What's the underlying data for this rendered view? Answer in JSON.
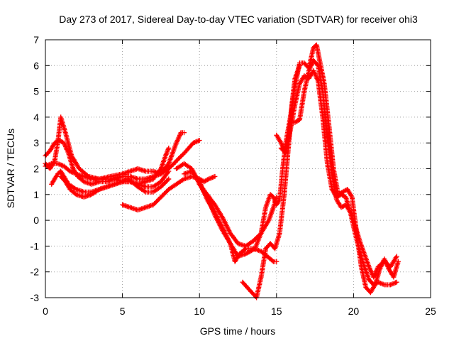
{
  "chart_data": {
    "type": "scatter",
    "title": "Day 273 of 2017, Sidereal Day-to-day VTEC variation (SDTVAR) for receiver ohi3",
    "xlabel": "GPS time / hours",
    "ylabel": "SDTVAR / TECUs",
    "xlim": [
      0,
      25
    ],
    "ylim": [
      -3,
      7
    ],
    "xticks": [
      0,
      5,
      10,
      15,
      20,
      25
    ],
    "yticks": [
      -3,
      -2,
      -1,
      0,
      1,
      2,
      3,
      4,
      5,
      6,
      7
    ],
    "grid": true,
    "marker": "+",
    "color": "#ff0000",
    "series": [
      {
        "x": [
          0.0,
          0.3,
          0.6,
          0.9,
          1.2,
          1.5,
          1.8,
          2.1,
          2.5,
          3.0,
          3.5,
          4.0,
          4.5,
          5.0,
          5.5,
          6.0,
          6.5,
          7.0,
          7.5,
          8.0,
          8.5,
          9.0,
          9.3,
          9.6,
          10.0
        ],
        "y": [
          2.5,
          2.7,
          3.0,
          3.1,
          3.0,
          2.6,
          2.0,
          1.7,
          1.5,
          1.4,
          1.5,
          1.5,
          1.6,
          1.7,
          1.7,
          1.6,
          1.6,
          1.7,
          1.8,
          2.0,
          2.3,
          2.6,
          2.8,
          3.0,
          3.1
        ]
      },
      {
        "x": [
          0.0,
          0.3,
          0.6,
          0.8,
          1.0,
          1.3,
          1.7,
          2.2,
          2.8,
          3.5,
          4.2,
          5.0,
          5.5,
          6.0,
          6.5,
          7.0,
          7.5,
          8.0,
          8.5,
          8.8,
          9.0
        ],
        "y": [
          2.2,
          2.0,
          2.3,
          3.0,
          4.0,
          3.4,
          2.5,
          2.0,
          1.7,
          1.6,
          1.7,
          1.8,
          1.9,
          2.0,
          1.9,
          1.9,
          1.8,
          2.2,
          3.0,
          3.4,
          3.4
        ]
      },
      {
        "x": [
          0.0,
          0.4,
          0.8,
          1.2,
          1.6,
          2.0,
          2.5,
          3.0,
          3.5,
          4.0,
          4.5,
          5.0,
          5.5,
          6.0,
          6.5,
          7.0,
          7.5,
          7.8,
          8.0
        ],
        "y": [
          2.1,
          2.2,
          2.2,
          2.1,
          1.9,
          1.8,
          1.7,
          1.6,
          1.6,
          1.6,
          1.6,
          1.5,
          1.5,
          1.4,
          1.5,
          1.6,
          2.0,
          2.5,
          2.8
        ]
      },
      {
        "x": [
          0.4,
          0.6,
          0.8,
          1.0,
          1.2,
          1.5,
          2.0,
          2.5,
          3.0,
          3.5,
          4.0,
          4.5,
          5.0,
          5.5,
          6.0,
          6.5,
          7.0,
          7.5,
          8.0
        ],
        "y": [
          1.4,
          1.6,
          1.8,
          1.9,
          1.7,
          1.4,
          1.2,
          1.1,
          1.1,
          1.2,
          1.3,
          1.4,
          1.5,
          1.5,
          1.4,
          1.3,
          1.3,
          1.5,
          1.9
        ]
      },
      {
        "x": [
          1.0,
          1.3,
          1.6,
          2.0,
          2.5,
          3.0,
          3.5,
          4.0,
          4.5,
          5.0,
          5.3,
          5.6,
          6.0,
          6.5,
          7.0,
          7.5,
          8.0
        ],
        "y": [
          1.7,
          1.5,
          1.2,
          1.0,
          0.9,
          1.0,
          1.2,
          1.3,
          1.4,
          1.5,
          1.6,
          1.5,
          1.3,
          1.1,
          1.1,
          1.3,
          1.6
        ]
      },
      {
        "x": [
          5.0,
          5.5,
          6.0,
          6.5,
          7.0,
          7.5,
          8.0,
          8.5,
          9.0,
          9.5,
          10.0,
          10.3,
          10.6,
          11.0
        ],
        "y": [
          0.6,
          0.5,
          0.4,
          0.5,
          0.6,
          0.9,
          1.2,
          1.4,
          1.6,
          1.7,
          1.6,
          1.5,
          1.6,
          1.7
        ]
      },
      {
        "x": [
          8.5,
          9.0,
          9.5,
          10.0,
          10.5,
          11.0,
          11.5,
          12.0,
          12.5,
          13.0,
          13.5,
          14.0,
          14.5,
          14.8,
          15.0
        ],
        "y": [
          2.0,
          2.2,
          2.0,
          1.4,
          1.0,
          0.6,
          0.1,
          -0.5,
          -0.9,
          -1.0,
          -0.8,
          -0.5,
          0.0,
          0.5,
          0.9
        ]
      },
      {
        "x": [
          9.0,
          9.5,
          10.0,
          10.5,
          11.0,
          11.5,
          12.0,
          12.5,
          13.0,
          13.3,
          13.6,
          14.0,
          14.3,
          14.6,
          14.8,
          15.0,
          15.2,
          15.4,
          15.6
        ],
        "y": [
          1.8,
          1.9,
          1.5,
          0.8,
          0.3,
          -0.3,
          -0.9,
          -1.4,
          -1.3,
          -1.2,
          -1.1,
          -0.5,
          0.5,
          1.0,
          0.9,
          0.6,
          0.8,
          2.0,
          3.0
        ]
      },
      {
        "x": [
          10.0,
          10.5,
          11.0,
          11.5,
          12.0,
          12.3,
          12.6,
          13.0,
          13.5,
          14.0,
          14.4,
          14.8,
          15.0
        ],
        "y": [
          1.4,
          0.9,
          0.2,
          -0.4,
          -0.9,
          -1.6,
          -1.3,
          -1.1,
          -1.1,
          -1.2,
          -1.4,
          -1.6,
          -1.6
        ]
      },
      {
        "x": [
          12.8,
          13.1,
          13.4,
          13.7,
          14.0,
          14.3,
          14.6,
          14.9,
          15.2,
          15.5,
          15.8,
          16.0,
          16.2,
          16.5
        ],
        "y": [
          -2.4,
          -2.6,
          -2.8,
          -3.0,
          -2.2,
          -1.1,
          -0.9,
          -1.1,
          -0.5,
          1.0,
          3.0,
          4.5,
          5.5,
          6.0
        ]
      },
      {
        "x": [
          15.0,
          15.3,
          15.6,
          15.9,
          16.2,
          16.5,
          16.8,
          17.1,
          17.4,
          17.7,
          18.0,
          18.3,
          18.6,
          18.9,
          19.2,
          19.5,
          19.8,
          20.1,
          20.4,
          20.7,
          21.0,
          21.3,
          21.6,
          22.0,
          22.4,
          22.8
        ],
        "y": [
          3.3,
          3.0,
          2.6,
          3.5,
          4.5,
          5.3,
          5.6,
          5.5,
          5.8,
          5.4,
          4.0,
          2.2,
          1.2,
          0.9,
          1.0,
          0.9,
          0.3,
          -0.5,
          -1.2,
          -1.8,
          -2.3,
          -2.5,
          -2.4,
          -2.5,
          -2.5,
          -2.4
        ]
      },
      {
        "x": [
          15.3,
          15.6,
          15.9,
          16.2,
          16.5,
          16.8,
          17.1,
          17.4,
          17.7,
          18.0,
          18.3,
          18.6,
          18.9,
          19.2,
          19.5,
          19.8,
          20.1,
          20.4,
          20.7,
          21.0,
          21.3,
          21.6,
          22.0,
          22.4,
          22.8
        ],
        "y": [
          2.8,
          2.6,
          3.8,
          3.8,
          3.9,
          5.0,
          5.8,
          6.2,
          6.0,
          5.0,
          3.2,
          1.8,
          0.8,
          0.5,
          0.6,
          0.3,
          -0.2,
          -0.8,
          -1.3,
          -1.8,
          -2.2,
          -1.8,
          -1.6,
          -1.8,
          -1.4
        ]
      },
      {
        "x": [
          15.6,
          15.9,
          16.2,
          16.5,
          16.8,
          17.1,
          17.4,
          17.6,
          17.8,
          18.1,
          18.4,
          18.7,
          19.0,
          19.3,
          19.6,
          19.9,
          20.2,
          20.5,
          20.8,
          21.1,
          21.4,
          21.7,
          22.0,
          22.3,
          22.6,
          22.9
        ],
        "y": [
          3.0,
          4.0,
          5.2,
          6.1,
          6.1,
          5.9,
          6.7,
          6.8,
          6.2,
          5.3,
          3.7,
          2.0,
          1.0,
          1.1,
          1.2,
          0.9,
          -0.5,
          -1.8,
          -2.6,
          -2.8,
          -2.5,
          -1.9,
          -1.5,
          -1.9,
          -2.2,
          -1.6
        ]
      }
    ]
  }
}
